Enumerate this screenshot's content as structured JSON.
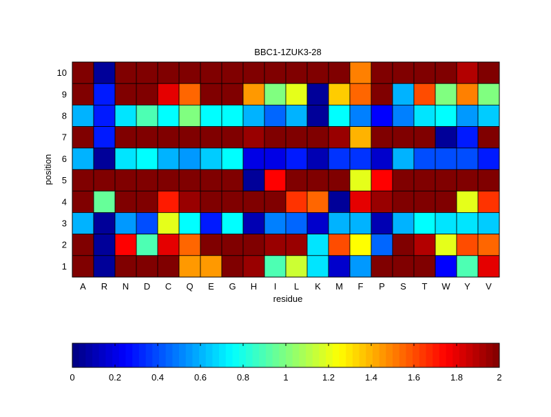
{
  "chart_data": [
    {
      "type": "heatmap",
      "title": "BBC1-1ZUK3-28",
      "xlabel": "residue",
      "ylabel": "position",
      "x_categories": [
        "A",
        "R",
        "N",
        "D",
        "C",
        "Q",
        "E",
        "G",
        "H",
        "I",
        "L",
        "K",
        "M",
        "F",
        "P",
        "S",
        "T",
        "W",
        "Y",
        "V"
      ],
      "y_categories": [
        "10",
        "9",
        "8",
        "7",
        "6",
        "5",
        "4",
        "3",
        "2",
        "1"
      ],
      "colormap": "jet",
      "clim": [
        0,
        2
      ],
      "values": [
        [
          2.0,
          0.05,
          2.0,
          2.0,
          2.0,
          2.0,
          2.0,
          2.0,
          2.0,
          2.0,
          2.0,
          2.0,
          2.0,
          1.5,
          2.0,
          2.0,
          2.0,
          2.0,
          1.9,
          2.0
        ],
        [
          2.0,
          0.3,
          2.0,
          2.0,
          1.8,
          1.55,
          2.0,
          2.0,
          1.45,
          1.0,
          1.2,
          0.05,
          1.35,
          1.55,
          2.0,
          0.6,
          1.6,
          1.0,
          1.5,
          1.0
        ],
        [
          0.6,
          0.3,
          0.7,
          0.9,
          0.75,
          1.0,
          0.75,
          0.75,
          0.6,
          0.45,
          0.6,
          0.05,
          0.75,
          0.5,
          0.25,
          0.5,
          0.7,
          0.75,
          0.55,
          0.65
        ],
        [
          2.0,
          0.3,
          2.0,
          2.0,
          2.0,
          2.0,
          2.0,
          2.0,
          1.95,
          2.0,
          2.0,
          2.0,
          1.95,
          1.4,
          2.0,
          2.0,
          2.0,
          0.05,
          0.3,
          2.0
        ],
        [
          0.6,
          0.05,
          0.7,
          0.75,
          0.6,
          0.55,
          0.65,
          0.75,
          0.2,
          0.2,
          0.3,
          0.1,
          0.35,
          0.35,
          0.15,
          0.6,
          0.4,
          0.4,
          0.4,
          0.3
        ],
        [
          2.0,
          2.0,
          2.0,
          2.0,
          2.0,
          2.0,
          2.0,
          2.0,
          0.05,
          1.75,
          2.0,
          2.0,
          2.0,
          1.2,
          1.75,
          2.0,
          2.0,
          2.0,
          2.0,
          2.0
        ],
        [
          2.0,
          0.95,
          2.0,
          2.0,
          1.7,
          1.95,
          2.0,
          2.0,
          2.0,
          2.0,
          1.65,
          1.55,
          0.05,
          1.8,
          1.95,
          2.0,
          2.0,
          2.0,
          1.2,
          1.65
        ],
        [
          0.6,
          0.05,
          0.55,
          0.4,
          1.2,
          0.75,
          0.3,
          0.75,
          0.1,
          0.5,
          0.45,
          0.15,
          0.6,
          0.6,
          0.1,
          0.6,
          0.75,
          0.7,
          0.7,
          0.65
        ],
        [
          2.0,
          0.05,
          1.75,
          0.9,
          1.8,
          1.55,
          2.0,
          2.0,
          2.0,
          1.95,
          1.95,
          0.7,
          1.6,
          1.25,
          0.45,
          2.0,
          1.9,
          1.2,
          1.6,
          1.55
        ],
        [
          2.0,
          0.05,
          2.0,
          2.0,
          2.0,
          1.45,
          1.45,
          2.0,
          1.95,
          0.9,
          1.15,
          0.7,
          0.15,
          0.55,
          2.0,
          2.0,
          2.0,
          0.25,
          0.9,
          1.8
        ]
      ]
    },
    {
      "type": "colorbar",
      "colormap": "jet",
      "range": [
        0,
        2
      ],
      "tick_labels": [
        "0",
        "0.2",
        "0.4",
        "0.6",
        "0.8",
        "1",
        "1.2",
        "1.4",
        "1.6",
        "1.8",
        "2"
      ]
    }
  ]
}
